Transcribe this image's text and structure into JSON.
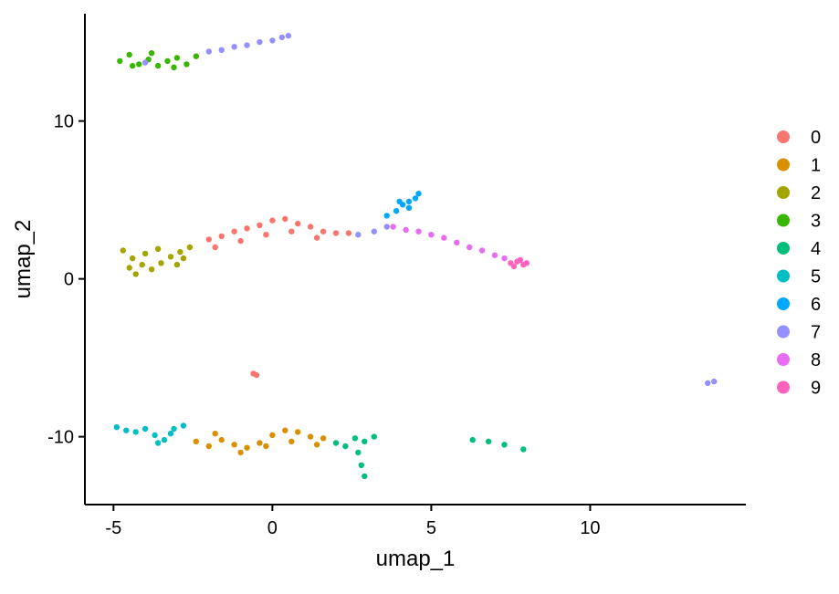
{
  "chart_data": {
    "type": "scatter",
    "title": "",
    "xlabel": "umap_1",
    "ylabel": "umap_2",
    "xlim": [
      -5.9,
      14.9
    ],
    "ylim": [
      -14.3,
      16.8
    ],
    "x_ticks": [
      -5,
      0,
      5,
      10
    ],
    "y_ticks": [
      -10,
      0,
      10
    ],
    "grid": false,
    "legend_position": "right",
    "legend": [
      "0",
      "1",
      "2",
      "3",
      "4",
      "5",
      "6",
      "7",
      "8",
      "9"
    ],
    "clusters": [
      {
        "label": "0",
        "color": "#F8766D",
        "points": [
          [
            -2.0,
            2.5
          ],
          [
            -1.6,
            2.7
          ],
          [
            -1.2,
            3.0
          ],
          [
            -0.8,
            3.2
          ],
          [
            -0.4,
            3.4
          ],
          [
            0.0,
            3.7
          ],
          [
            0.4,
            3.8
          ],
          [
            0.8,
            3.5
          ],
          [
            1.2,
            3.3
          ],
          [
            1.6,
            3.0
          ],
          [
            2.0,
            2.9
          ],
          [
            -1.8,
            2.0
          ],
          [
            -1.0,
            2.4
          ],
          [
            -0.2,
            2.8
          ],
          [
            0.6,
            3.0
          ],
          [
            1.4,
            2.6
          ],
          [
            2.4,
            2.9
          ],
          [
            -0.6,
            -6.0
          ],
          [
            -0.5,
            -6.1
          ]
        ]
      },
      {
        "label": "1",
        "color": "#D89000",
        "points": [
          [
            -2.4,
            -10.3
          ],
          [
            -2.0,
            -10.6
          ],
          [
            -1.6,
            -10.2
          ],
          [
            -1.2,
            -10.5
          ],
          [
            -0.8,
            -10.7
          ],
          [
            -0.4,
            -10.4
          ],
          [
            0.0,
            -9.9
          ],
          [
            0.4,
            -9.6
          ],
          [
            0.8,
            -9.7
          ],
          [
            1.2,
            -10.0
          ],
          [
            1.6,
            -10.1
          ],
          [
            -1.8,
            -9.8
          ],
          [
            -1.0,
            -11.0
          ],
          [
            -0.2,
            -10.6
          ],
          [
            0.6,
            -10.3
          ],
          [
            1.4,
            -10.5
          ]
        ]
      },
      {
        "label": "2",
        "color": "#A3A500",
        "points": [
          [
            -4.7,
            1.8
          ],
          [
            -4.4,
            1.3
          ],
          [
            -4.1,
            0.9
          ],
          [
            -3.8,
            0.6
          ],
          [
            -3.5,
            1.0
          ],
          [
            -3.2,
            1.4
          ],
          [
            -2.9,
            1.7
          ],
          [
            -2.6,
            2.0
          ],
          [
            -4.5,
            0.7
          ],
          [
            -4.0,
            1.6
          ],
          [
            -3.6,
            1.9
          ],
          [
            -3.0,
            0.9
          ],
          [
            -4.3,
            0.3
          ],
          [
            -2.8,
            1.3
          ]
        ]
      },
      {
        "label": "3",
        "color": "#39B600",
        "points": [
          [
            -4.8,
            13.8
          ],
          [
            -4.5,
            14.2
          ],
          [
            -4.2,
            13.6
          ],
          [
            -3.9,
            13.9
          ],
          [
            -3.6,
            13.5
          ],
          [
            -3.3,
            13.8
          ],
          [
            -3.0,
            14.0
          ],
          [
            -2.7,
            13.6
          ],
          [
            -2.4,
            14.1
          ],
          [
            -4.4,
            13.5
          ],
          [
            -3.8,
            14.3
          ],
          [
            -3.1,
            13.4
          ]
        ]
      },
      {
        "label": "4",
        "color": "#00BF7D",
        "points": [
          [
            2.0,
            -10.4
          ],
          [
            2.3,
            -10.6
          ],
          [
            2.6,
            -10.1
          ],
          [
            2.9,
            -10.3
          ],
          [
            3.2,
            -10.0
          ],
          [
            2.7,
            -11.0
          ],
          [
            2.8,
            -11.8
          ],
          [
            2.9,
            -12.5
          ],
          [
            6.3,
            -10.2
          ],
          [
            6.8,
            -10.3
          ],
          [
            7.3,
            -10.5
          ],
          [
            7.9,
            -10.8
          ]
        ]
      },
      {
        "label": "5",
        "color": "#00BFC4",
        "points": [
          [
            -4.9,
            -9.4
          ],
          [
            -4.6,
            -9.6
          ],
          [
            -4.3,
            -9.7
          ],
          [
            -4.0,
            -9.5
          ],
          [
            -3.7,
            -9.9
          ],
          [
            -3.4,
            -10.2
          ],
          [
            -3.1,
            -9.5
          ],
          [
            -2.8,
            -9.3
          ],
          [
            -3.6,
            -10.4
          ],
          [
            -3.2,
            -9.8
          ]
        ]
      },
      {
        "label": "6",
        "color": "#00A9FF",
        "points": [
          [
            3.6,
            4.0
          ],
          [
            3.9,
            4.3
          ],
          [
            4.1,
            4.7
          ],
          [
            4.3,
            4.9
          ],
          [
            4.5,
            5.1
          ],
          [
            4.6,
            5.4
          ],
          [
            4.3,
            4.5
          ],
          [
            4.0,
            4.9
          ]
        ]
      },
      {
        "label": "7",
        "color": "#9590FF",
        "points": [
          [
            -2.0,
            14.4
          ],
          [
            -1.6,
            14.5
          ],
          [
            -1.2,
            14.7
          ],
          [
            -0.8,
            14.8
          ],
          [
            -0.4,
            15.0
          ],
          [
            0.0,
            15.1
          ],
          [
            0.3,
            15.3
          ],
          [
            0.5,
            15.4
          ],
          [
            -4.0,
            13.7
          ],
          [
            13.7,
            -6.6
          ],
          [
            13.9,
            -6.5
          ],
          [
            2.7,
            2.8
          ],
          [
            3.2,
            3.0
          ],
          [
            3.6,
            3.3
          ]
        ]
      },
      {
        "label": "8",
        "color": "#E76BF3",
        "points": [
          [
            3.8,
            3.3
          ],
          [
            4.2,
            3.1
          ],
          [
            4.6,
            3.0
          ],
          [
            5.0,
            2.8
          ],
          [
            5.4,
            2.6
          ],
          [
            5.8,
            2.3
          ],
          [
            6.2,
            2.0
          ],
          [
            6.6,
            1.8
          ],
          [
            7.0,
            1.5
          ],
          [
            7.3,
            1.3
          ]
        ]
      },
      {
        "label": "9",
        "color": "#FF62BC",
        "points": [
          [
            7.5,
            1.0
          ],
          [
            7.7,
            1.1
          ],
          [
            7.9,
            0.9
          ],
          [
            7.6,
            0.8
          ],
          [
            7.8,
            1.2
          ],
          [
            8.0,
            1.0
          ]
        ]
      }
    ]
  }
}
